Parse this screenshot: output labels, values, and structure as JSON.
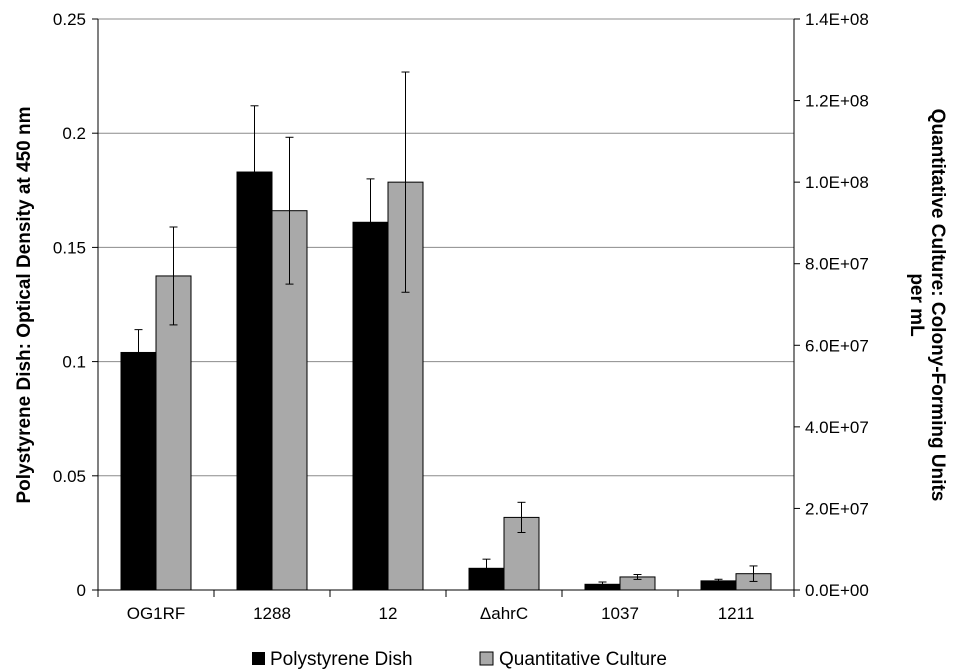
{
  "chart_data": {
    "type": "bar",
    "categories": [
      "OG1RF",
      "1288",
      "12",
      "ΔahrC",
      "1037",
      "1211"
    ],
    "series": [
      {
        "name": "Polystyrene Dish",
        "axis": "left",
        "color": "#000000",
        "values": [
          0.104,
          0.183,
          0.161,
          0.0095,
          0.0025,
          0.004
        ],
        "errors": [
          0.01,
          0.029,
          0.019,
          0.004,
          0.001,
          0.0007
        ]
      },
      {
        "name": "Quantitative Culture",
        "axis": "right",
        "color": "#a9a9a9",
        "values": [
          77000000.0,
          93000000.0,
          100000000.0,
          17800000.0,
          3200000.0,
          4000000.0
        ],
        "errors": [
          12000000.0,
          18000000.0,
          27000000.0,
          3700000.0,
          600000.0,
          1900000.0
        ]
      }
    ],
    "ylabel_left": "Polystyrene Dish: Optical Density at 450 nm",
    "ylabel_right_line1": "Quantitative Culture: Colony-Forming Units",
    "ylabel_right_line2": "per mL",
    "ylim_left": [
      0,
      0.25
    ],
    "ylim_right": [
      0,
      140000000
    ],
    "yticks_left": [
      "0",
      "0.05",
      "0.1",
      "0.15",
      "0.2",
      "0.25"
    ],
    "yticks_right": [
      "0.0E+00",
      "2.0E+07",
      "4.0E+07",
      "6.0E+07",
      "8.0E+07",
      "1.0E+08",
      "1.2E+08",
      "1.4E+08"
    ],
    "grid": true,
    "legend_position": "bottom"
  }
}
